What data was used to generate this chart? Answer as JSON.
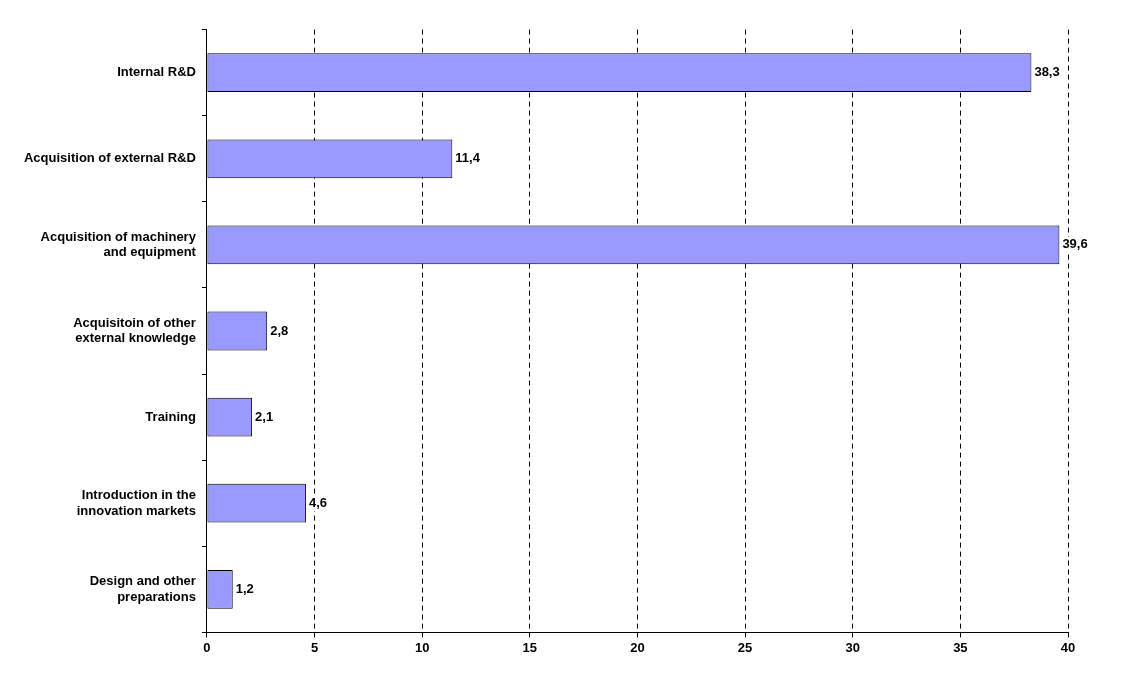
{
  "chart_data": {
    "type": "bar",
    "orientation": "horizontal",
    "categories": [
      "Internal R&D",
      "Acquisition of external R&D",
      "Acquisition of machinery and equipment",
      "Acquisitoin of other external knowledge",
      "Training",
      "Introduction in the innovation markets",
      "Design and other preparations"
    ],
    "values": [
      38.3,
      11.4,
      39.6,
      2.8,
      2.1,
      4.6,
      1.2
    ],
    "value_labels": [
      "38,3",
      "11,4",
      "39,6",
      "2,8",
      "2,1",
      "4,6",
      "1,2"
    ],
    "color": "#9999ff",
    "xlim": [
      0,
      40
    ],
    "xticks": [
      0,
      5,
      10,
      15,
      20,
      25,
      30,
      35,
      40
    ],
    "grid": "x",
    "legend": false
  }
}
